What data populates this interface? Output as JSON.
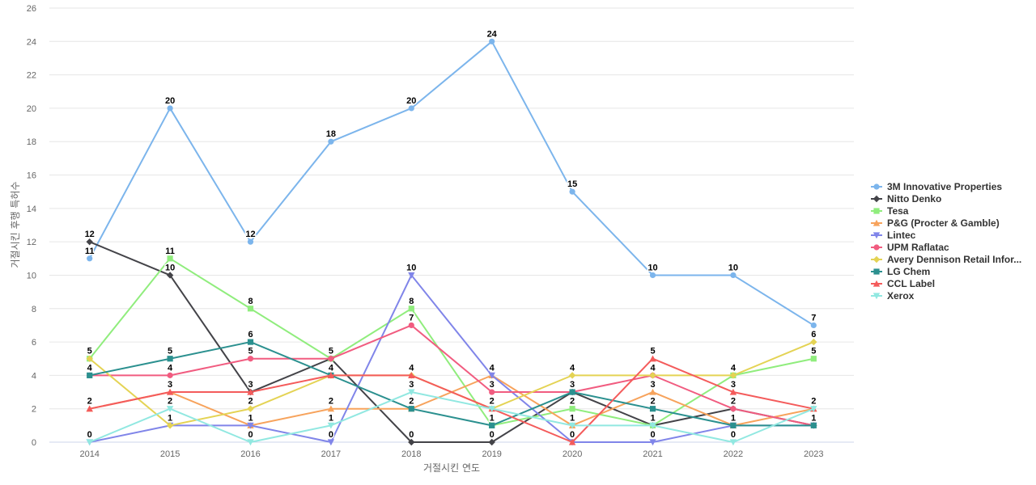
{
  "chart_data": {
    "type": "line",
    "title": "",
    "xlabel": "거절시킨 연도",
    "ylabel": "거절시킨 후행 특허수",
    "x": [
      "2014",
      "2015",
      "2016",
      "2017",
      "2018",
      "2019",
      "2020",
      "2021",
      "2022",
      "2023"
    ],
    "ylim": [
      0,
      26
    ],
    "yticks": [
      0,
      2,
      4,
      6,
      8,
      10,
      12,
      14,
      16,
      18,
      20,
      22,
      24,
      26
    ],
    "grid": true,
    "legend_position": "right",
    "series": [
      {
        "name": "3M Innovative Properties",
        "color": "#7cb5ec",
        "marker": "circle",
        "values": [
          11,
          20,
          12,
          18,
          20,
          24,
          15,
          10,
          10,
          7
        ]
      },
      {
        "name": "Nitto Denko",
        "color": "#434348",
        "marker": "diamond",
        "values": [
          12,
          10,
          3,
          5,
          0,
          0,
          3,
          1,
          2,
          1
        ]
      },
      {
        "name": "Tesa",
        "color": "#90ed7d",
        "marker": "square",
        "values": [
          5,
          11,
          8,
          5,
          8,
          1,
          2,
          1,
          4,
          5
        ]
      },
      {
        "name": "P&G (Procter & Gamble)",
        "color": "#f7a35c",
        "marker": "triangle",
        "values": [
          2,
          3,
          1,
          2,
          2,
          4,
          1,
          3,
          1,
          2
        ]
      },
      {
        "name": "Lintec",
        "color": "#8085e9",
        "marker": "triangle-down",
        "values": [
          0,
          1,
          1,
          0,
          10,
          4,
          0,
          0,
          1,
          1
        ]
      },
      {
        "name": "UPM Raflatac",
        "color": "#f15c80",
        "marker": "circle",
        "values": [
          4,
          4,
          5,
          5,
          7,
          3,
          3,
          4,
          2,
          1
        ]
      },
      {
        "name": "Avery Dennison Retail Infor...",
        "color": "#e4d354",
        "marker": "diamond",
        "values": [
          5,
          1,
          2,
          4,
          4,
          2,
          4,
          4,
          4,
          6
        ]
      },
      {
        "name": "LG Chem",
        "color": "#2b908f",
        "marker": "square",
        "values": [
          4,
          5,
          6,
          4,
          2,
          1,
          3,
          2,
          1,
          1
        ]
      },
      {
        "name": "CCL Label",
        "color": "#f45b5b",
        "marker": "triangle",
        "values": [
          2,
          3,
          3,
          4,
          4,
          2,
          0,
          5,
          3,
          2
        ]
      },
      {
        "name": "Xerox",
        "color": "#91e8e1",
        "marker": "triangle-down",
        "values": [
          0,
          2,
          0,
          1,
          3,
          2,
          1,
          1,
          0,
          2
        ]
      }
    ],
    "data_labels": [
      [
        11,
        20,
        12,
        18,
        20,
        24,
        15,
        10,
        10,
        7
      ],
      [
        12,
        10,
        3,
        5,
        0,
        0,
        3,
        1,
        2,
        1
      ],
      [
        5,
        11,
        8,
        5,
        8,
        1,
        2,
        1,
        4,
        5
      ],
      [
        2,
        3,
        1,
        2,
        2,
        4,
        1,
        3,
        1,
        2
      ],
      [
        0,
        1,
        1,
        0,
        10,
        4,
        0,
        0,
        1,
        1
      ],
      [
        4,
        4,
        5,
        5,
        7,
        3,
        3,
        4,
        2,
        1
      ],
      [
        5,
        1,
        2,
        4,
        4,
        2,
        4,
        4,
        4,
        6
      ],
      [
        4,
        5,
        6,
        4,
        2,
        1,
        3,
        2,
        1,
        1
      ],
      [
        2,
        3,
        3,
        4,
        4,
        2,
        0,
        5,
        3,
        2
      ],
      [
        0,
        2,
        0,
        1,
        3,
        2,
        1,
        1,
        0,
        2
      ]
    ]
  }
}
